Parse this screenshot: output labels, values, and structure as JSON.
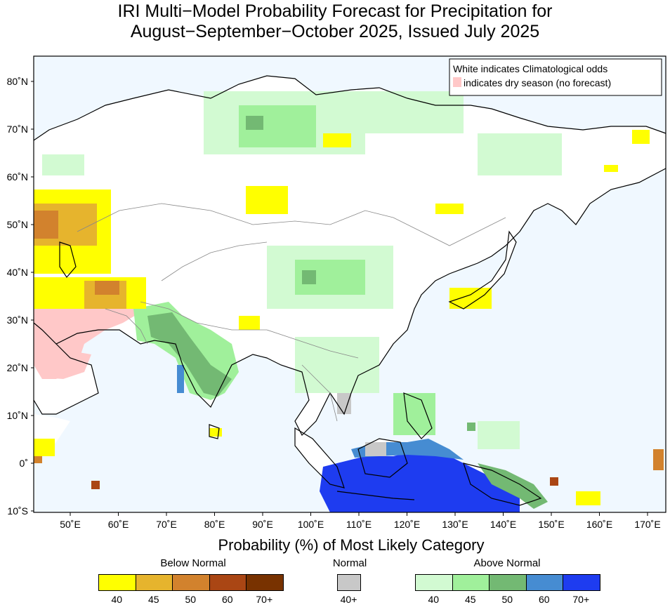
{
  "title": {
    "line1": "IRI Multi−Model Probability Forecast for Precipitation for",
    "line2": "August−September−October 2025, Issued July 2025"
  },
  "legend_box": {
    "line1": "White indicates Climatological odds",
    "line2": "indicates dry season (no forecast)",
    "dry_season_color": "#ffc8c8"
  },
  "map": {
    "ocean_color": "#f0f8ff",
    "lat_labels": [
      "80˚N",
      "70˚N",
      "60˚N",
      "50˚N",
      "40˚N",
      "30˚N",
      "20˚N",
      "10˚N",
      "0˚",
      "10˚S"
    ],
    "lon_labels": [
      "50˚E",
      "60˚E",
      "70˚E",
      "80˚E",
      "90˚E",
      "100˚E",
      "110˚E",
      "120˚E",
      "130˚E",
      "140˚E",
      "150˚E",
      "160˚E",
      "170˚E"
    ]
  },
  "colorbar": {
    "title": "Probability (%) of Most Likely Category",
    "below": {
      "label": "Below Normal",
      "colors": [
        "#ffff00",
        "#e6b42d",
        "#d2822d",
        "#aa4614",
        "#783200"
      ],
      "ticks": [
        "40",
        "45",
        "50",
        "60",
        "70+"
      ]
    },
    "normal": {
      "label": "Normal",
      "colors": [
        "#c8c8c8"
      ],
      "ticks": [
        "40+"
      ]
    },
    "above": {
      "label": "Above Normal",
      "colors": [
        "#d2fad2",
        "#a0f09b",
        "#73b973",
        "#468cd2",
        "#1e3cf0"
      ],
      "ticks": [
        "40",
        "45",
        "50",
        "60",
        "70+"
      ]
    }
  }
}
